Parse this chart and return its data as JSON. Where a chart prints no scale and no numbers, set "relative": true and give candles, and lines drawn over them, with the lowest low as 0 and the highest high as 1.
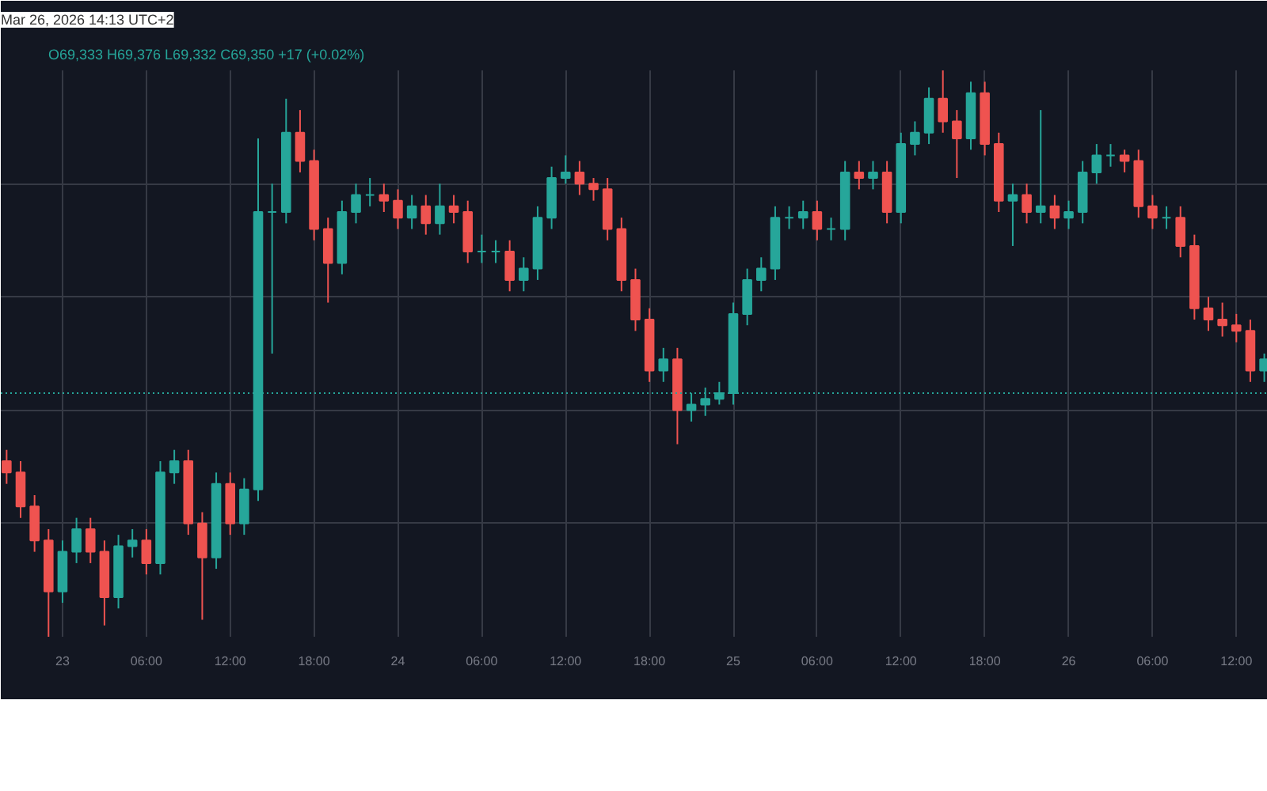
{
  "chart_data": {
    "type": "candlestick",
    "title": "Mar 26, 2026 14:13 UTC+2",
    "subtitle": "O69,333 H69,376 L69,332 C69,350 +17 (+0.02%)",
    "relative": true,
    "grid": true,
    "x": [
      "2026-03-22T20:00",
      "2026-03-22T21:00",
      "2026-03-22T22:00",
      "2026-03-22T23:00",
      "2026-03-23T00:00",
      "2026-03-23T01:00",
      "2026-03-23T02:00",
      "2026-03-23T03:00",
      "2026-03-23T04:00",
      "2026-03-23T05:00",
      "2026-03-23T06:00",
      "2026-03-23T07:00",
      "2026-03-23T08:00",
      "2026-03-23T09:00",
      "2026-03-23T10:00",
      "2026-03-23T11:00",
      "2026-03-23T12:00",
      "2026-03-23T13:00",
      "2026-03-23T14:00",
      "2026-03-23T15:00",
      "2026-03-23T16:00",
      "2026-03-23T17:00",
      "2026-03-23T18:00",
      "2026-03-23T19:00",
      "2026-03-23T20:00",
      "2026-03-23T21:00",
      "2026-03-23T22:00",
      "2026-03-23T23:00",
      "2026-03-24T00:00",
      "2026-03-24T01:00",
      "2026-03-24T02:00",
      "2026-03-24T03:00",
      "2026-03-24T04:00",
      "2026-03-24T05:00",
      "2026-03-24T06:00",
      "2026-03-24T07:00",
      "2026-03-24T08:00",
      "2026-03-24T09:00",
      "2026-03-24T10:00",
      "2026-03-24T11:00",
      "2026-03-24T12:00",
      "2026-03-24T13:00",
      "2026-03-24T14:00",
      "2026-03-24T15:00",
      "2026-03-24T16:00",
      "2026-03-24T17:00",
      "2026-03-24T18:00",
      "2026-03-24T19:00",
      "2026-03-24T20:00",
      "2026-03-24T21:00",
      "2026-03-24T22:00",
      "2026-03-24T23:00",
      "2026-03-25T00:00",
      "2026-03-25T01:00",
      "2026-03-25T02:00",
      "2026-03-25T03:00",
      "2026-03-25T04:00",
      "2026-03-25T05:00",
      "2026-03-25T06:00",
      "2026-03-25T07:00",
      "2026-03-25T08:00",
      "2026-03-25T09:00",
      "2026-03-25T10:00",
      "2026-03-25T11:00",
      "2026-03-25T12:00",
      "2026-03-25T13:00",
      "2026-03-25T14:00",
      "2026-03-25T15:00",
      "2026-03-25T16:00",
      "2026-03-25T17:00",
      "2026-03-25T18:00",
      "2026-03-25T19:00",
      "2026-03-25T20:00",
      "2026-03-25T21:00",
      "2026-03-25T22:00",
      "2026-03-25T23:00",
      "2026-03-26T00:00",
      "2026-03-26T01:00",
      "2026-03-26T02:00",
      "2026-03-26T03:00",
      "2026-03-26T04:00",
      "2026-03-26T05:00",
      "2026-03-26T06:00",
      "2026-03-26T07:00",
      "2026-03-26T08:00",
      "2026-03-26T09:00",
      "2026-03-26T10:00",
      "2026-03-26T11:00",
      "2026-03-26T12:00",
      "2026-03-26T13:00",
      "2026-03-26T14:00"
    ],
    "ohlc": [
      [
        0.31,
        0.33,
        0.27,
        0.29
      ],
      [
        0.29,
        0.31,
        0.21,
        0.23
      ],
      [
        0.23,
        0.25,
        0.15,
        0.17
      ],
      [
        0.17,
        0.19,
        0.0,
        0.08
      ],
      [
        0.08,
        0.17,
        0.06,
        0.15
      ],
      [
        0.15,
        0.21,
        0.13,
        0.19
      ],
      [
        0.19,
        0.21,
        0.13,
        0.15
      ],
      [
        0.15,
        0.17,
        0.02,
        0.07
      ],
      [
        0.07,
        0.18,
        0.05,
        0.16
      ],
      [
        0.16,
        0.19,
        0.14,
        0.17
      ],
      [
        0.17,
        0.19,
        0.11,
        0.13
      ],
      [
        0.13,
        0.31,
        0.11,
        0.29
      ],
      [
        0.29,
        0.33,
        0.27,
        0.31
      ],
      [
        0.31,
        0.33,
        0.18,
        0.2
      ],
      [
        0.2,
        0.22,
        0.03,
        0.14
      ],
      [
        0.14,
        0.29,
        0.12,
        0.27
      ],
      [
        0.27,
        0.29,
        0.18,
        0.2
      ],
      [
        0.2,
        0.28,
        0.18,
        0.26
      ],
      [
        0.26,
        0.88,
        0.24,
        0.75
      ],
      [
        0.75,
        0.8,
        0.5,
        0.75
      ],
      [
        0.75,
        0.95,
        0.73,
        0.89
      ],
      [
        0.89,
        0.93,
        0.82,
        0.84
      ],
      [
        0.84,
        0.86,
        0.7,
        0.72
      ],
      [
        0.72,
        0.74,
        0.59,
        0.66
      ],
      [
        0.66,
        0.77,
        0.64,
        0.75
      ],
      [
        0.75,
        0.8,
        0.73,
        0.78
      ],
      [
        0.78,
        0.81,
        0.76,
        0.78
      ],
      [
        0.78,
        0.8,
        0.75,
        0.77
      ],
      [
        0.77,
        0.79,
        0.72,
        0.74
      ],
      [
        0.74,
        0.78,
        0.72,
        0.76
      ],
      [
        0.76,
        0.78,
        0.71,
        0.73
      ],
      [
        0.73,
        0.8,
        0.71,
        0.76
      ],
      [
        0.76,
        0.78,
        0.73,
        0.75
      ],
      [
        0.75,
        0.77,
        0.66,
        0.68
      ],
      [
        0.68,
        0.71,
        0.66,
        0.68
      ],
      [
        0.68,
        0.7,
        0.66,
        0.68
      ],
      [
        0.68,
        0.7,
        0.61,
        0.63
      ],
      [
        0.63,
        0.67,
        0.61,
        0.65
      ],
      [
        0.65,
        0.76,
        0.63,
        0.74
      ],
      [
        0.74,
        0.83,
        0.72,
        0.81
      ],
      [
        0.81,
        0.85,
        0.8,
        0.82
      ],
      [
        0.82,
        0.84,
        0.78,
        0.8
      ],
      [
        0.8,
        0.81,
        0.77,
        0.79
      ],
      [
        0.79,
        0.81,
        0.7,
        0.72
      ],
      [
        0.72,
        0.74,
        0.61,
        0.63
      ],
      [
        0.63,
        0.65,
        0.54,
        0.56
      ],
      [
        0.56,
        0.58,
        0.45,
        0.47
      ],
      [
        0.47,
        0.51,
        0.45,
        0.49
      ],
      [
        0.49,
        0.51,
        0.34,
        0.4
      ],
      [
        0.4,
        0.43,
        0.38,
        0.41
      ],
      [
        0.41,
        0.44,
        0.39,
        0.42
      ],
      [
        0.42,
        0.45,
        0.41,
        0.43
      ],
      [
        0.43,
        0.59,
        0.41,
        0.57
      ],
      [
        0.57,
        0.65,
        0.55,
        0.63
      ],
      [
        0.63,
        0.67,
        0.61,
        0.65
      ],
      [
        0.65,
        0.76,
        0.63,
        0.74
      ],
      [
        0.74,
        0.76,
        0.72,
        0.74
      ],
      [
        0.74,
        0.77,
        0.72,
        0.75
      ],
      [
        0.75,
        0.77,
        0.7,
        0.72
      ],
      [
        0.72,
        0.74,
        0.7,
        0.72
      ],
      [
        0.72,
        0.84,
        0.7,
        0.82
      ],
      [
        0.82,
        0.84,
        0.79,
        0.81
      ],
      [
        0.81,
        0.84,
        0.79,
        0.82
      ],
      [
        0.82,
        0.84,
        0.73,
        0.75
      ],
      [
        0.75,
        0.89,
        0.73,
        0.87
      ],
      [
        0.87,
        0.91,
        0.85,
        0.89
      ],
      [
        0.89,
        0.97,
        0.87,
        0.95
      ],
      [
        0.95,
        1.0,
        0.89,
        0.91
      ],
      [
        0.91,
        0.93,
        0.81,
        0.88
      ],
      [
        0.88,
        0.98,
        0.86,
        0.96
      ],
      [
        0.96,
        0.98,
        0.85,
        0.87
      ],
      [
        0.87,
        0.89,
        0.75,
        0.77
      ],
      [
        0.77,
        0.8,
        0.69,
        0.78
      ],
      [
        0.78,
        0.8,
        0.73,
        0.75
      ],
      [
        0.75,
        0.93,
        0.73,
        0.76
      ],
      [
        0.76,
        0.78,
        0.72,
        0.74
      ],
      [
        0.74,
        0.77,
        0.72,
        0.75
      ],
      [
        0.75,
        0.84,
        0.73,
        0.82
      ],
      [
        0.82,
        0.87,
        0.8,
        0.85
      ],
      [
        0.85,
        0.87,
        0.83,
        0.85
      ],
      [
        0.85,
        0.86,
        0.82,
        0.84
      ],
      [
        0.84,
        0.86,
        0.74,
        0.76
      ],
      [
        0.76,
        0.78,
        0.72,
        0.74
      ],
      [
        0.74,
        0.76,
        0.72,
        0.74
      ],
      [
        0.74,
        0.76,
        0.67,
        0.69
      ],
      [
        0.69,
        0.71,
        0.56,
        0.58
      ],
      [
        0.58,
        0.6,
        0.54,
        0.56
      ],
      [
        0.56,
        0.59,
        0.53,
        0.55
      ],
      [
        0.55,
        0.57,
        0.52,
        0.54
      ],
      [
        0.54,
        0.56,
        0.45,
        0.47
      ],
      [
        0.47,
        0.5,
        0.45,
        0.49
      ]
    ],
    "xlim": [
      "2026-03-22T19:35",
      "2026-03-26T14:15"
    ],
    "xticks": [
      {
        "value": "2026-03-23T00:00",
        "label": "23"
      },
      {
        "value": "2026-03-23T06:00",
        "label": "06:00"
      },
      {
        "value": "2026-03-23T12:00",
        "label": "12:00"
      },
      {
        "value": "2026-03-23T18:00",
        "label": "18:00"
      },
      {
        "value": "2026-03-24T00:00",
        "label": "24"
      },
      {
        "value": "2026-03-24T06:00",
        "label": "06:00"
      },
      {
        "value": "2026-03-24T12:00",
        "label": "12:00"
      },
      {
        "value": "2026-03-24T18:00",
        "label": "18:00"
      },
      {
        "value": "2026-03-25T00:00",
        "label": "25"
      },
      {
        "value": "2026-03-25T06:00",
        "label": "06:00"
      },
      {
        "value": "2026-03-25T12:00",
        "label": "12:00"
      },
      {
        "value": "2026-03-25T18:00",
        "label": "18:00"
      },
      {
        "value": "2026-03-26T00:00",
        "label": "26"
      },
      {
        "value": "2026-03-26T06:00",
        "label": "06:00"
      },
      {
        "value": "2026-03-26T12:00",
        "label": "12:00"
      }
    ],
    "ref_lines": [
      {
        "axis": "y",
        "value": 0.43,
        "color": "#26a69a",
        "line_style": "dotted"
      }
    ]
  }
}
